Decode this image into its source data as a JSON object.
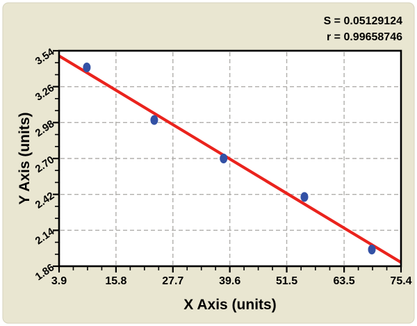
{
  "panel": {
    "background_color": "#e9e6d1",
    "outer_background_color": "#ffffff"
  },
  "annotations": {
    "s_label": "S = 0.05129124",
    "r_label": "r = 0.99658746"
  },
  "chart_data": {
    "type": "scatter",
    "title": "",
    "xlabel": "X Axis (units)",
    "ylabel": "Y Axis (units)",
    "xlim": [
      3.9,
      75.4
    ],
    "ylim": [
      1.86,
      3.54
    ],
    "x_ticks": [
      3.9,
      15.8,
      27.7,
      39.6,
      51.5,
      63.5,
      75.4
    ],
    "x_tick_labels": [
      "3.9",
      "15.8",
      "27.7",
      "39.6",
      "51.5",
      "63.5",
      "75.4"
    ],
    "y_ticks": [
      1.86,
      2.14,
      2.42,
      2.7,
      2.98,
      3.26,
      3.54
    ],
    "y_tick_labels": [
      "1.86",
      "2.14",
      "2.42",
      "2.70",
      "2.98",
      "3.26",
      "3.54"
    ],
    "x_minor_divisions": 4,
    "y_minor_divisions": 3,
    "grid": "dashed-major",
    "legend": "none",
    "points": [
      [
        9.7,
        3.41
      ],
      [
        23.8,
        3.0
      ],
      [
        38.3,
        2.7
      ],
      [
        55.2,
        2.4
      ],
      [
        69.3,
        1.99
      ]
    ],
    "trendline": {
      "x1": 3.9,
      "y1": 3.5,
      "x2": 75.4,
      "y2": 1.89
    },
    "stats": {
      "S": "0.05129124",
      "r": "0.99658746"
    },
    "colors": {
      "point": "#3351a5",
      "trend": "#ea231d",
      "grid": "#b0aeab",
      "axis": "#000000",
      "plot_background": "#ffffff"
    }
  }
}
